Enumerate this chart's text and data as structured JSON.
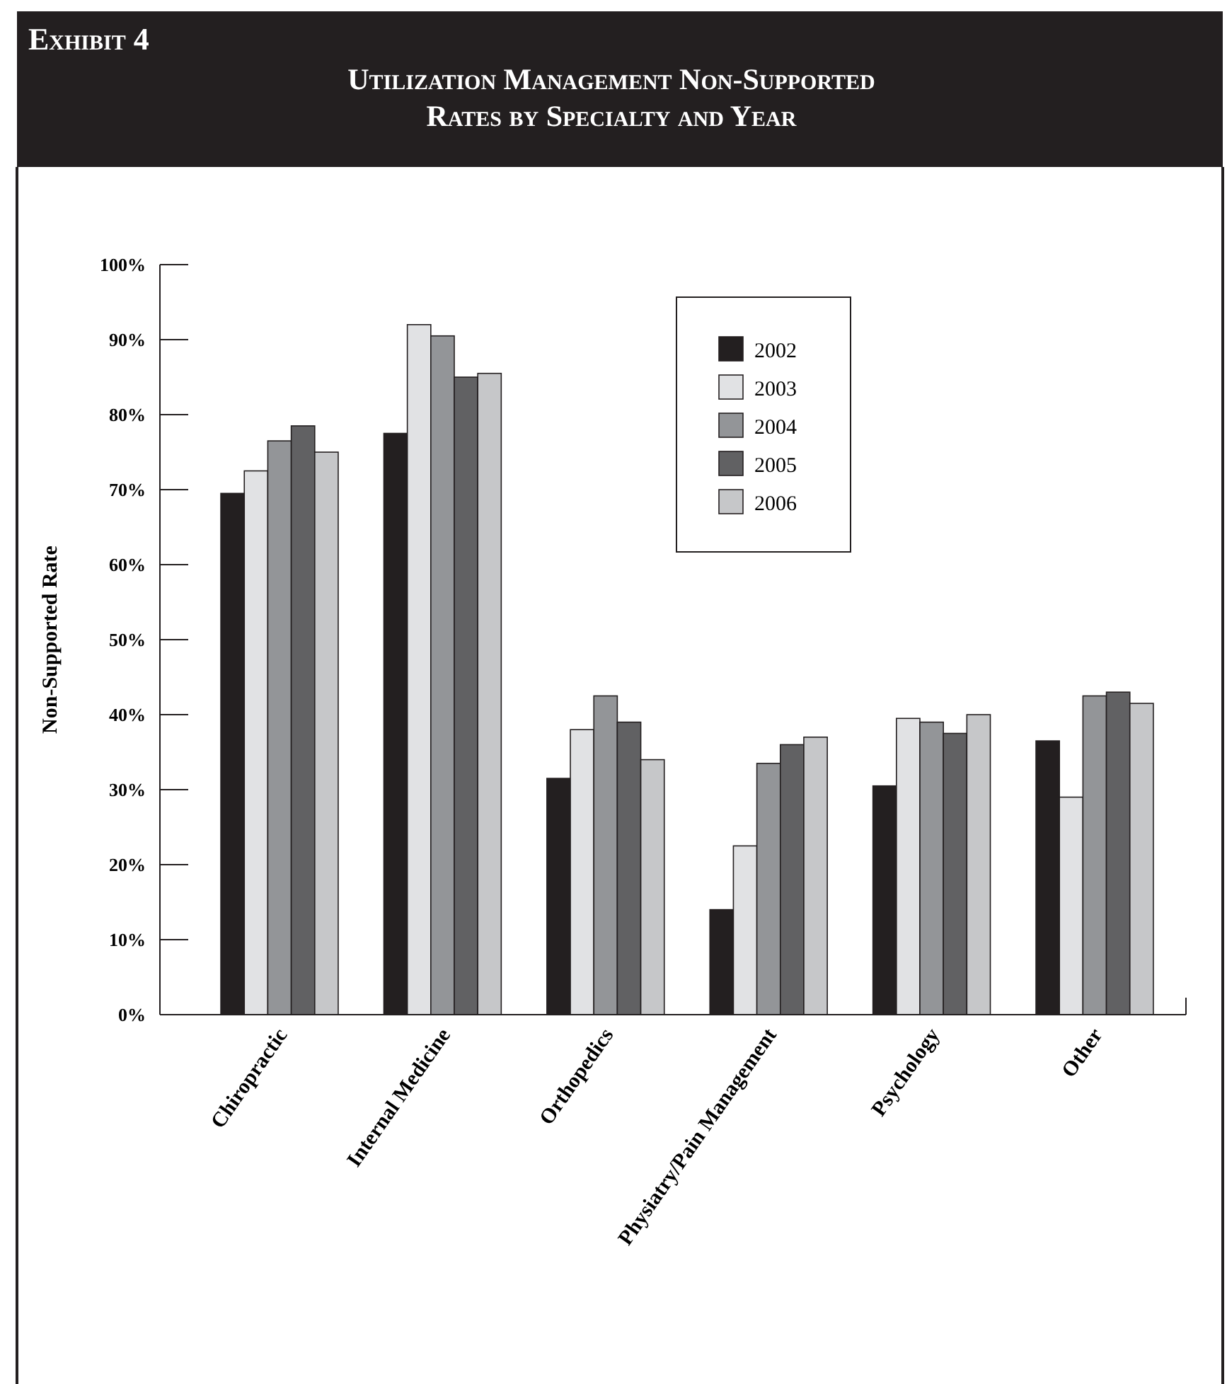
{
  "chart_data": {
    "type": "bar",
    "title": "Utilization Management Non-Supported Rates by Specialty and Year",
    "annotations": [
      "Exhibit 4"
    ],
    "ylabel": "Non-Supported Rate",
    "categories": [
      "Chiropractic",
      "Internal Medicine",
      "Orthopedics",
      "Physiatry/Pain Management",
      "Psychology",
      "Other"
    ],
    "series": [
      {
        "name": "2002",
        "color": "#231f20",
        "values": [
          69.5,
          77.5,
          31.5,
          14,
          30.5,
          36.5
        ]
      },
      {
        "name": "2003",
        "color": "#e1e2e4",
        "values": [
          72.5,
          92,
          38,
          22.5,
          39.5,
          29
        ]
      },
      {
        "name": "2004",
        "color": "#939598",
        "values": [
          76.5,
          90.5,
          42.5,
          33.5,
          39,
          42.5
        ]
      },
      {
        "name": "2005",
        "color": "#616163",
        "values": [
          78.5,
          85,
          39,
          36,
          37.5,
          43
        ]
      },
      {
        "name": "2006",
        "color": "#c6c7c9",
        "values": [
          75,
          85.5,
          34,
          37,
          40,
          41.5
        ]
      }
    ],
    "ylim": [
      0,
      100
    ],
    "yticks": [
      {
        "value": 0,
        "label": "0%"
      },
      {
        "value": 10,
        "label": "10%"
      },
      {
        "value": 20,
        "label": "20%"
      },
      {
        "value": 30,
        "label": "30%"
      },
      {
        "value": 40,
        "label": "40%"
      },
      {
        "value": 50,
        "label": "50%"
      },
      {
        "value": 60,
        "label": "60%"
      },
      {
        "value": 70,
        "label": "70%"
      },
      {
        "value": 80,
        "label": "80%"
      },
      {
        "value": 90,
        "label": "90%"
      },
      {
        "value": 100,
        "label": "100%"
      }
    ],
    "legend": "top right",
    "grid": false
  }
}
